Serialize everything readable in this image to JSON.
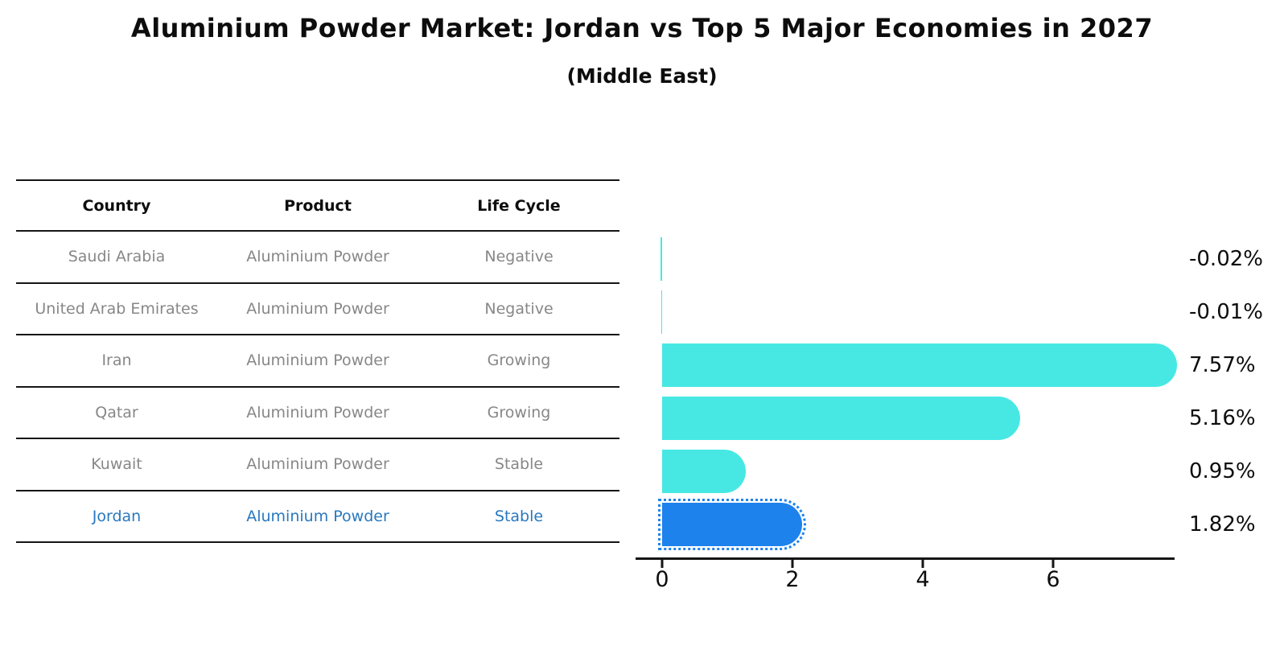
{
  "title": "Aluminium Powder Market: Jordan vs Top 5 Major Economies in 2027",
  "subtitle": "(Middle East)",
  "table": {
    "headers": [
      "Country",
      "Product",
      "Life Cycle"
    ],
    "rows": [
      {
        "country": "Saudi Arabia",
        "product": "Aluminium Powder",
        "life_cycle": "Negative",
        "highlight": false
      },
      {
        "country": "United Arab Emirates",
        "product": "Aluminium Powder",
        "life_cycle": "Negative",
        "highlight": false
      },
      {
        "country": "Iran",
        "product": "Aluminium Powder",
        "life_cycle": "Growing",
        "highlight": false
      },
      {
        "country": "Qatar",
        "product": "Aluminium Powder",
        "life_cycle": "Growing",
        "highlight": false
      },
      {
        "country": "Kuwait",
        "product": "Aluminium Powder",
        "life_cycle": "Stable",
        "highlight": false
      },
      {
        "country": "Jordan",
        "product": "Aluminium Powder",
        "life_cycle": "Stable",
        "highlight": true
      }
    ]
  },
  "chart_data": {
    "type": "bar",
    "orientation": "horizontal",
    "categories": [
      "Saudi Arabia",
      "United Arab Emirates",
      "Iran",
      "Qatar",
      "Kuwait",
      "Jordan"
    ],
    "values": [
      -0.02,
      -0.01,
      7.57,
      5.16,
      0.95,
      1.82
    ],
    "value_labels": [
      "-0.02%",
      "-0.01%",
      "7.57%",
      "5.16%",
      "0.95%",
      "1.82%"
    ],
    "x_ticks": [
      0,
      2,
      4,
      6
    ],
    "x_tick_labels": [
      "0",
      "2",
      "4",
      "6"
    ],
    "xlim": [
      -0.45,
      8.05
    ],
    "grid": false,
    "legend": false,
    "highlight_category": "Jordan",
    "title": "Aluminium Powder Market: Jordan vs Top 5 Major Economies in 2027",
    "subtitle": "(Middle East)",
    "colors": {
      "bar": "#47e8e3",
      "highlight_bar": "#1e82ec",
      "highlight_text": "#2878c0",
      "row_text": "#878787",
      "header_text": "#0d0d0d",
      "axis": "#151515"
    }
  }
}
